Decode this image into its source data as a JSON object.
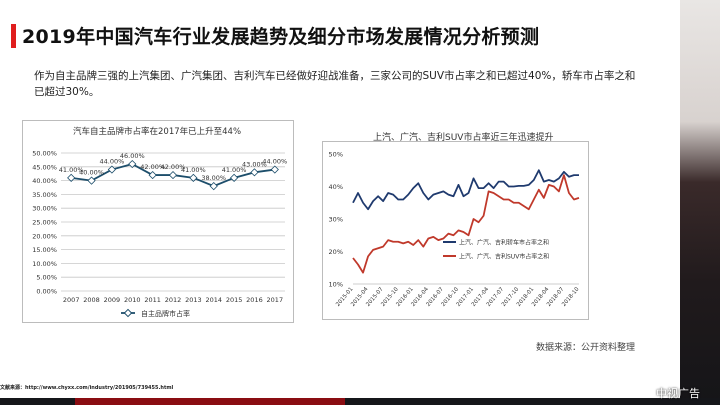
{
  "title": "2019年中国汽车行业发展趋势及细分市场发展情况分析预测",
  "description": "作为自主品牌三强的上汽集团、广汽集团、吉利汽车已经做好迎战准备，三家公司的SUV市占率之和已超过40%，轿车市占率之和已超过30%。",
  "source": "数据来源：公开资料整理",
  "footer_link": "文献来源：http://www.chyxx.com/industry/201905/739455.html",
  "watermark": "中视广告",
  "chart_data": [
    {
      "type": "line",
      "title": "汽车自主品牌市占率在2017年已上升至44%",
      "categories": [
        "2007",
        "2008",
        "2009",
        "2010",
        "2011",
        "2012",
        "2013",
        "2014",
        "2015",
        "2016",
        "2017"
      ],
      "series": [
        {
          "name": "自主品牌市占率",
          "values": [
            41,
            40,
            44,
            46,
            42,
            42,
            41,
            38,
            41,
            43,
            44
          ],
          "color": "#1d4e6b"
        }
      ],
      "data_labels": [
        "41.00%",
        "40.00%",
        "44.00%",
        "46.00%",
        "42.00%",
        "42.00%",
        "41.00%",
        "38.00%",
        "41.00%",
        "43.00%",
        "44.00%"
      ],
      "yticks": [
        "0.00%",
        "5.00%",
        "10.00%",
        "15.00%",
        "20.00%",
        "25.00%",
        "30.00%",
        "35.00%",
        "40.00%",
        "45.00%",
        "50.00%"
      ],
      "ylim": [
        0,
        50
      ],
      "grid": true,
      "legend": "bottom"
    },
    {
      "type": "line",
      "title": "上汽、广汽、吉利SUV市占率近三年迅速提升",
      "xticks": [
        "2015-01",
        "2015-04",
        "2015-07",
        "2015-10",
        "2016-01",
        "2016-04",
        "2016-07",
        "2016-10",
        "2017-01",
        "2017-04",
        "2017-07",
        "2017-10",
        "2018-01",
        "2018-04",
        "2018-07",
        "2018-10"
      ],
      "yticks": [
        "10%",
        "20%",
        "30%",
        "40%",
        "50%"
      ],
      "ylim": [
        10,
        50
      ],
      "grid": false,
      "legend": "lower-right",
      "series": [
        {
          "name": "上汽、广汽、吉利轿车市占率之和",
          "color": "#1f3a6e",
          "values": [
            35,
            38,
            35,
            33,
            35.5,
            37,
            35.5,
            38,
            37.5,
            36,
            36,
            37.5,
            39.5,
            41,
            38,
            36,
            37.5,
            38,
            38.5,
            37.5,
            37,
            40.5,
            37,
            38,
            42.5,
            39.5,
            39.5,
            41,
            39.5,
            41.5,
            41.5,
            40,
            40,
            40.2,
            40.2,
            40.5,
            42,
            45,
            41.5,
            42,
            41.5,
            42.5,
            44.5,
            43,
            43.5,
            43.5
          ]
        },
        {
          "name": "上汽、广汽、吉利SUV市占率之和",
          "color": "#c0392b",
          "values": [
            18,
            16,
            13.5,
            18.5,
            20.5,
            21,
            21.5,
            23.5,
            23,
            23,
            22.5,
            23,
            22,
            23.5,
            21.5,
            24,
            24.5,
            23.5,
            24,
            25.5,
            25,
            26.5,
            26,
            25,
            30,
            29,
            31,
            38.5,
            38,
            37,
            36,
            36,
            35,
            35,
            34,
            33,
            36,
            39,
            36.5,
            40.5,
            40,
            38.5,
            43.5,
            38,
            36,
            36.5
          ]
        }
      ]
    }
  ]
}
